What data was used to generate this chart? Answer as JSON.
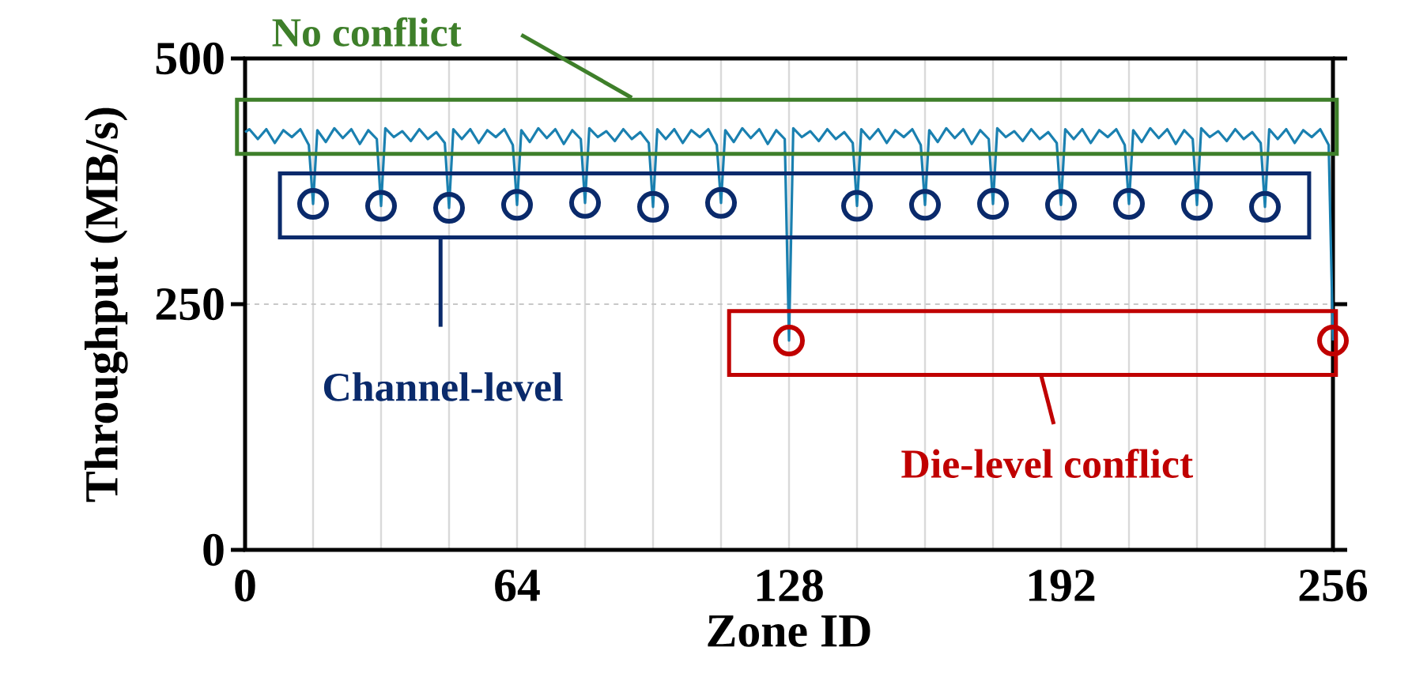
{
  "chart_data": {
    "type": "line",
    "xlabel": "Zone ID",
    "ylabel": "Throughput (MB/s)",
    "xlim": [
      0,
      256
    ],
    "ylim": [
      0,
      500
    ],
    "xticks": [
      0,
      {
        "value": 16,
        "label": null
      },
      {
        "value": 32,
        "label": null
      },
      {
        "value": 48,
        "label": null
      },
      64,
      {
        "value": 80,
        "label": null
      },
      {
        "value": 96,
        "label": null
      },
      {
        "value": 112,
        "label": null
      },
      128,
      {
        "value": 144,
        "label": null
      },
      {
        "value": 160,
        "label": null
      },
      {
        "value": 176,
        "label": null
      },
      192,
      {
        "value": 208,
        "label": null
      },
      {
        "value": 224,
        "label": null
      },
      {
        "value": 240,
        "label": null
      },
      256
    ],
    "yticks": [
      0,
      250,
      500
    ],
    "grid": true,
    "line_style": "solid",
    "series": [
      {
        "color": "#1a80b0",
        "x": [
          0,
          1,
          3,
          5,
          7,
          9,
          11,
          13,
          15,
          16,
          17,
          19,
          21,
          23,
          25,
          27,
          29,
          31,
          32,
          33,
          35,
          37,
          39,
          41,
          43,
          45,
          47,
          48,
          49,
          51,
          53,
          55,
          57,
          59,
          61,
          63,
          64,
          65,
          67,
          69,
          71,
          73,
          75,
          77,
          79,
          80,
          81,
          83,
          85,
          87,
          89,
          91,
          93,
          95,
          96,
          97,
          99,
          101,
          103,
          105,
          107,
          109,
          111,
          112,
          113,
          115,
          117,
          119,
          121,
          123,
          125,
          127,
          128,
          129,
          131,
          133,
          135,
          137,
          139,
          141,
          143,
          144,
          145,
          147,
          149,
          151,
          153,
          155,
          157,
          159,
          160,
          161,
          163,
          165,
          167,
          169,
          171,
          173,
          175,
          176,
          177,
          179,
          181,
          183,
          185,
          187,
          189,
          191,
          192,
          193,
          195,
          197,
          199,
          201,
          203,
          205,
          207,
          208,
          209,
          211,
          213,
          215,
          217,
          219,
          221,
          223,
          224,
          225,
          227,
          229,
          231,
          233,
          235,
          237,
          239,
          240,
          241,
          243,
          245,
          247,
          249,
          251,
          253,
          255,
          256
        ],
        "values": [
          425,
          428,
          418,
          428,
          414,
          427,
          420,
          428,
          412,
          352,
          427,
          415,
          429,
          419,
          428,
          413,
          427,
          418,
          350,
          429,
          420,
          426,
          416,
          428,
          418,
          425,
          414,
          348,
          428,
          418,
          428,
          414,
          427,
          420,
          428,
          412,
          351,
          427,
          415,
          429,
          419,
          428,
          413,
          427,
          418,
          353,
          429,
          420,
          426,
          416,
          428,
          418,
          425,
          414,
          349,
          428,
          418,
          428,
          414,
          427,
          420,
          428,
          412,
          353,
          427,
          415,
          429,
          419,
          428,
          413,
          427,
          418,
          213,
          429,
          420,
          426,
          416,
          428,
          418,
          425,
          414,
          350,
          428,
          418,
          428,
          414,
          427,
          420,
          428,
          412,
          351,
          427,
          415,
          429,
          419,
          428,
          413,
          427,
          418,
          352,
          429,
          420,
          426,
          416,
          428,
          418,
          425,
          414,
          351,
          428,
          418,
          428,
          414,
          427,
          420,
          428,
          412,
          352,
          427,
          415,
          429,
          419,
          428,
          413,
          427,
          418,
          351,
          429,
          420,
          426,
          416,
          428,
          418,
          425,
          414,
          349,
          428,
          418,
          428,
          414,
          427,
          420,
          428,
          412,
          213
        ]
      },
      {
        "type": "scatter",
        "marker": "circle",
        "color": "#0a2a6b",
        "x": [
          16,
          32,
          48,
          64,
          80,
          96,
          112,
          144,
          160,
          176,
          192,
          208,
          224,
          240
        ],
        "values": [
          352,
          350,
          348,
          351,
          353,
          349,
          353,
          350,
          351,
          352,
          351,
          352,
          351,
          349
        ]
      },
      {
        "type": "scatter",
        "marker": "circle",
        "color": "#c00000",
        "x": [
          128,
          256
        ],
        "values": [
          213,
          213
        ]
      }
    ],
    "annotations": [
      "No conflict",
      "Channel-level",
      "Die-level conflict"
    ]
  }
}
